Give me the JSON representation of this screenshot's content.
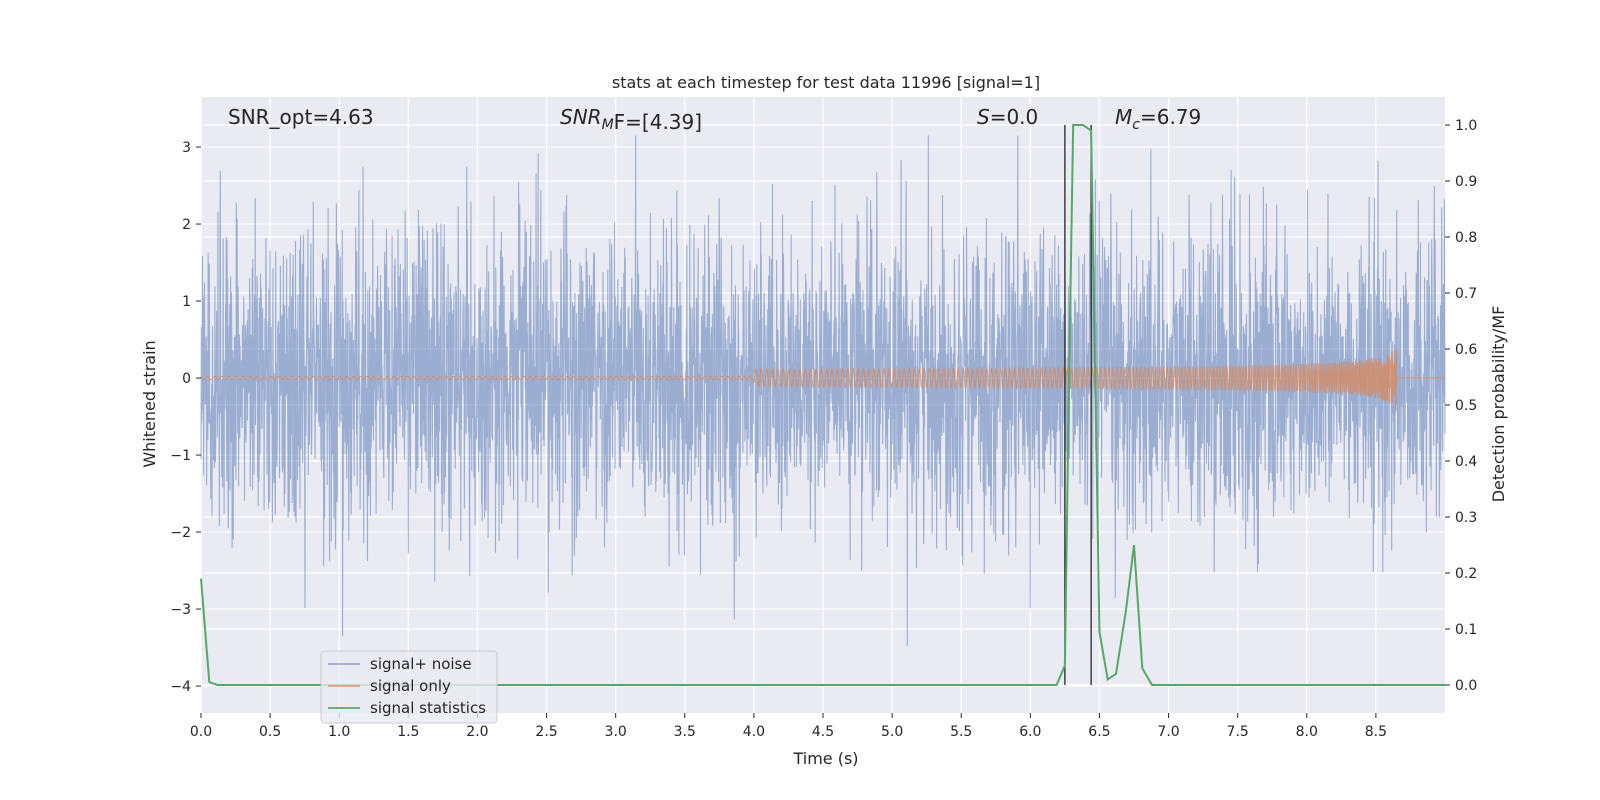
{
  "chart_data": {
    "type": "line",
    "title": "stats at each timestep for test data 11996 [signal=1]",
    "xlabel": "Time (s)",
    "ylabel_left": "Whitened strain",
    "ylabel_right": "Detection probability/MF",
    "xlim": [
      0,
      9.0
    ],
    "ylim_left": [
      -4.35,
      3.65
    ],
    "ylim_right": [
      -0.05,
      1.05
    ],
    "x_ticks": [
      "0.0",
      "0.5",
      "1.0",
      "1.5",
      "2.0",
      "2.5",
      "3.0",
      "3.5",
      "4.0",
      "4.5",
      "5.0",
      "5.5",
      "6.0",
      "6.5",
      "7.0",
      "7.5",
      "8.0",
      "8.5"
    ],
    "y_left_ticks": [
      "−4",
      "−3",
      "−2",
      "−1",
      "0",
      "1",
      "2",
      "3"
    ],
    "y_right_ticks": [
      "0.0",
      "0.1",
      "0.2",
      "0.3",
      "0.4",
      "0.5",
      "0.6",
      "0.7",
      "0.8",
      "0.9",
      "1.0"
    ],
    "grid": true,
    "legend_position": "lower-left",
    "annotations": [
      {
        "text": "SNR_opt=4.63",
        "x": 0.2
      },
      {
        "text": "SNR_MF=[4.39]",
        "x": 2.6
      },
      {
        "text": "S=0.0",
        "x": 5.6
      },
      {
        "text": "M_c=6.79",
        "x": 6.6
      }
    ],
    "vertical_lines_x": [
      6.25,
      6.44
    ],
    "series": [
      {
        "name": "signal+ noise",
        "axis": "left",
        "color": "#4c72b0",
        "description": "dense noisy whitened strain, roughly -2.5 to 2.5 with spikes to ±3"
      },
      {
        "name": "signal only",
        "axis": "left",
        "color": "#dd8452",
        "chirp_end_x": 8.65,
        "chirp_peak_amplitude": 0.45
      },
      {
        "name": "signal statistics",
        "axis": "right",
        "color": "#55a868",
        "x": [
          0.0,
          0.06,
          0.12,
          6.19,
          6.25,
          6.28,
          6.31,
          6.38,
          6.44,
          6.5,
          6.56,
          6.62,
          6.69,
          6.75,
          6.81,
          6.88,
          9.0
        ],
        "values": [
          0.19,
          0.005,
          0.0,
          0.0,
          0.035,
          0.55,
          1.0,
          1.0,
          0.99,
          0.095,
          0.01,
          0.02,
          0.13,
          0.25,
          0.03,
          0.0,
          0.0
        ]
      }
    ]
  },
  "legend": {
    "items": [
      "signal+ noise",
      "signal only",
      "signal statistics"
    ]
  },
  "text": {
    "snr_opt": "SNR_opt=4.63",
    "snr_mf_main": "SNR",
    "snr_mf_sub": "M",
    "snr_mf_rest": "F=[4.39]",
    "s_main": "S",
    "s_rest": "=0.0",
    "mc_main": "M",
    "mc_sub": "c",
    "mc_rest": "=6.79"
  }
}
